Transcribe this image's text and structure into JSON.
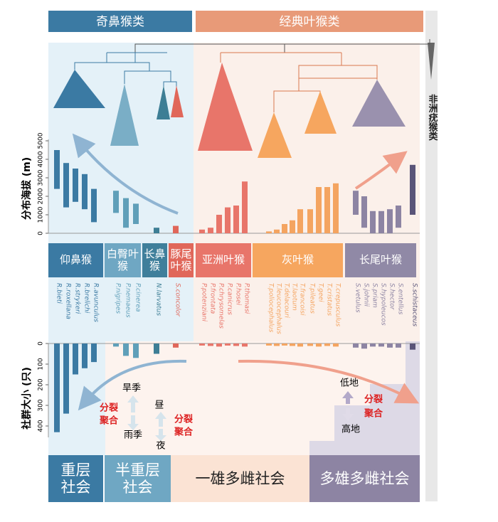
{
  "headers": {
    "left": "奇鼻猴类",
    "right": "经典叶猴类",
    "african": "非洲疣猴类"
  },
  "chart_data": [
    {
      "type": "range-bar",
      "y_label": "分布海拔 (m)",
      "categories": [
        "R.bieti",
        "R.roxellana",
        "R.strykeri",
        "R.brelichi",
        "R.avunculus",
        "P.nigripes",
        "P.nemaeus",
        "P.cinerea",
        "N.larvatus",
        "S.concolor",
        "P.potenziani",
        "P.frontata",
        "P.chrysomelas",
        "P.canicrus",
        "P.hosei",
        "P.thomasi",
        "T.poliocephalus",
        "T.leucocephalus",
        "T.delacouri",
        "T.laotum",
        "T.francoisi",
        "T.pileatus",
        "T.geei",
        "T.cristatus",
        "T.crepusculus",
        "S.vetulus",
        "S.johnii",
        "S.priam",
        "S.hypoleucos",
        "S.hector",
        "S.entellus",
        "S.schistaceus"
      ],
      "values": [
        [
          2400,
          4500
        ],
        [
          1400,
          3800
        ],
        [
          1700,
          3500
        ],
        [
          1300,
          3200
        ],
        [
          600,
          2400
        ],
        [
          1100,
          2300
        ],
        [
          300,
          1900
        ],
        [
          500,
          1600
        ],
        [
          0,
          300
        ],
        [
          0,
          400
        ],
        [
          0,
          200
        ],
        [
          0,
          300
        ],
        [
          0,
          1000
        ],
        [
          0,
          1400
        ],
        [
          0,
          1500
        ],
        [
          0,
          2800
        ],
        [
          0,
          100
        ],
        [
          0,
          200
        ],
        [
          0,
          500
        ],
        [
          0,
          700
        ],
        [
          0,
          1300
        ],
        [
          0,
          1300
        ],
        [
          0,
          2500
        ],
        [
          0,
          2500
        ],
        [
          0,
          2700
        ],
        [
          1000,
          2300
        ],
        [
          300,
          2000
        ],
        [
          0,
          1200
        ],
        [
          0,
          1200
        ],
        [
          0,
          1300
        ],
        [
          300,
          1500
        ],
        [
          1000,
          3700
        ]
      ],
      "colors": [
        "#3b7aa3",
        "#3b7aa3",
        "#3b7aa3",
        "#3b7aa3",
        "#3b7aa3",
        "#5f9fb9",
        "#5f9fb9",
        "#5f9fb9",
        "#3d7e95",
        "#e0675a",
        "#e8756a",
        "#e8756a",
        "#e8756a",
        "#e8756a",
        "#e8756a",
        "#e8756a",
        "#f4a460",
        "#f4a460",
        "#f4a460",
        "#f4a460",
        "#f4a460",
        "#f4a460",
        "#f4a460",
        "#f4a460",
        "#f4a460",
        "#8d84a3",
        "#8d84a3",
        "#8d84a3",
        "#8d84a3",
        "#8d84a3",
        "#8d84a3",
        "#5a5478"
      ],
      "ylim": [
        0,
        5000
      ],
      "yticks": [
        0,
        1000,
        2000,
        3000,
        4000,
        5000
      ]
    },
    {
      "type": "bar",
      "y_label": "社群大小 (只)",
      "values": [
        430,
        340,
        150,
        120,
        90,
        15,
        60,
        70,
        50,
        20,
        10,
        12,
        15,
        10,
        12,
        15,
        10,
        12,
        10,
        12,
        15,
        12,
        15,
        12,
        15,
        20,
        25,
        15,
        15,
        20,
        20,
        30
      ],
      "ylim": [
        0,
        450
      ],
      "yticks": [
        0,
        100,
        200,
        300,
        400
      ]
    }
  ],
  "genera": [
    "仰鼻猴",
    "白臀叶猴",
    "长鼻猴",
    "豚尾叶猴",
    "亚洲叶猴",
    "灰叶猴",
    "长尾叶猴"
  ],
  "annotations": {
    "dry_season": "旱季",
    "wet_season": "雨季",
    "day": "昼",
    "night": "夜",
    "fission_1": "分裂",
    "fusion_1": "聚合",
    "fission_2": "分裂",
    "fusion_2": "聚合",
    "fission_3": "分裂",
    "fusion_3": "聚合",
    "lowland": "低地",
    "highland": "高地"
  },
  "social_systems": [
    "重层社会",
    "半重层社会",
    "一雄多雌社会",
    "多雄多雌社会"
  ]
}
